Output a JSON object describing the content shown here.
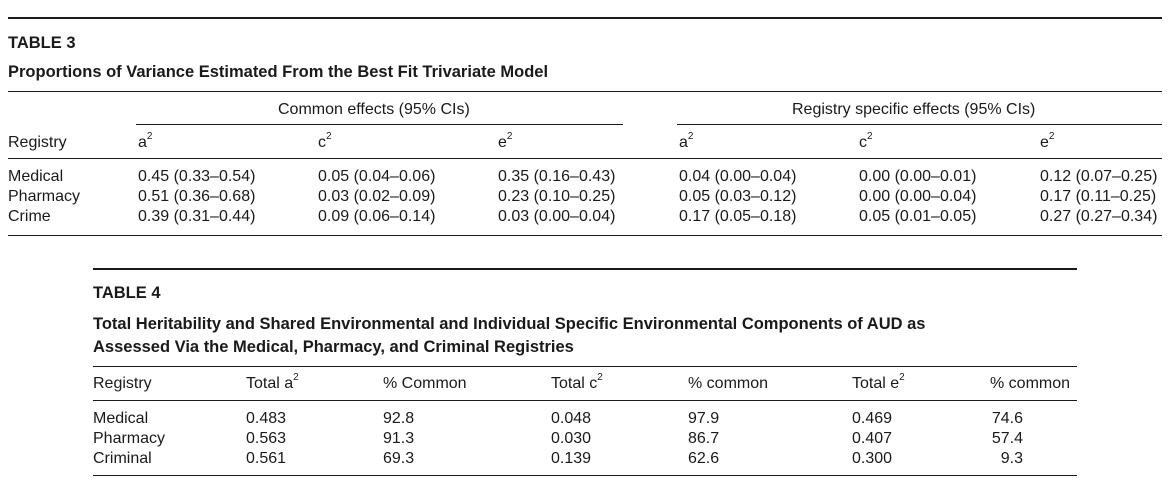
{
  "table3": {
    "label": "TABLE 3",
    "title": "Proportions of Variance Estimated From the Best Fit Trivariate Model",
    "group_common": "Common effects (95% CIs)",
    "group_specific": "Registry specific effects (95% CIs)",
    "col_registry": "Registry",
    "col_a": "a",
    "col_c": "c",
    "col_e": "e",
    "sup2": "2",
    "registries": [
      "Medical",
      "Pharmacy",
      "Crime"
    ],
    "common_a": [
      "0.45 (0.33–0.54)",
      "0.51 (0.36–0.68)",
      "0.39 (0.31–0.44)"
    ],
    "common_c": [
      "0.05 (0.04–0.06)",
      "0.03 (0.02–0.09)",
      "0.09 (0.06–0.14)"
    ],
    "common_e": [
      "0.35 (0.16–0.43)",
      "0.23 (0.10–0.25)",
      "0.03 (0.00–0.04)"
    ],
    "specific_a": [
      "0.04 (0.00–0.04)",
      "0.05 (0.03–0.12)",
      "0.17 (0.05–0.18)"
    ],
    "specific_c": [
      "0.00 (0.00–0.01)",
      "0.00 (0.00–0.04)",
      "0.05 (0.01–0.05)"
    ],
    "specific_e": [
      "0.12 (0.07–0.25)",
      "0.17 (0.11–0.25)",
      "0.27 (0.27–0.34)"
    ]
  },
  "table4": {
    "label": "TABLE 4",
    "title_line1": "Total Heritability and Shared Environmental and Individual Specific Environmental Components of AUD as",
    "title_line2": "Assessed Via the Medical, Pharmacy, and Criminal Registries",
    "col_registry": "Registry",
    "col_total_a": "Total a",
    "col_pct_common_a": "% Common",
    "col_total_c": "Total c",
    "col_pct_common_c": "% common",
    "col_total_e": "Total e",
    "col_pct_common_e": "% common",
    "sup2": "2",
    "registries": [
      "Medical",
      "Pharmacy",
      "Criminal"
    ],
    "total_a": [
      "0.483",
      "0.563",
      "0.561"
    ],
    "pct_common_a": [
      "92.8",
      "91.3",
      "69.3"
    ],
    "total_c": [
      "0.048",
      "0.030",
      "0.139"
    ],
    "pct_common_c": [
      "97.9",
      "86.7",
      "62.6"
    ],
    "total_e": [
      "0.469",
      "0.407",
      "0.300"
    ],
    "pct_common_e": [
      "74.6",
      "57.4",
      "9.3"
    ]
  }
}
